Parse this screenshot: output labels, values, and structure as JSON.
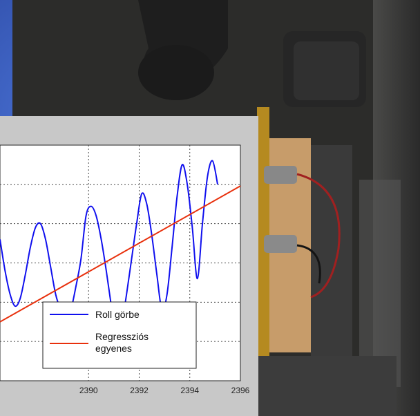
{
  "chart_data": {
    "type": "line",
    "title": "",
    "xlabel": "",
    "ylabel": "",
    "xlim": [
      2386.5,
      2396
    ],
    "ylim": [
      -1.5,
      1.5
    ],
    "x_ticks": [
      2390,
      2392,
      2394,
      2396
    ],
    "grid": true,
    "legend_placement": "bottom-right",
    "series": [
      {
        "name": "Roll görbe",
        "color": "#1010ee",
        "x": [
          2386.5,
          2386.7,
          2386.9,
          2387.1,
          2387.3,
          2387.5,
          2387.7,
          2387.9,
          2388.1,
          2388.3,
          2388.5,
          2388.7,
          2388.9,
          2389.1,
          2389.3,
          2389.5,
          2389.7,
          2389.9,
          2390.1,
          2390.3,
          2390.5,
          2390.7,
          2390.9,
          2391.1,
          2391.3,
          2391.5,
          2391.7,
          2391.9,
          2392.1,
          2392.3,
          2392.5,
          2392.7,
          2392.9,
          2393.1,
          2393.3,
          2393.5,
          2393.7,
          2393.9,
          2394.1,
          2394.3,
          2394.5,
          2394.7,
          2394.9,
          2395.1
        ],
        "y": [
          0.3,
          -0.1,
          -0.4,
          -0.55,
          -0.45,
          -0.15,
          0.2,
          0.45,
          0.5,
          0.3,
          -0.05,
          -0.4,
          -0.6,
          -0.75,
          -0.6,
          -0.3,
          0.05,
          0.6,
          0.72,
          0.6,
          0.3,
          -0.1,
          -0.55,
          -0.95,
          -0.8,
          -0.4,
          0.05,
          0.5,
          0.88,
          0.75,
          0.35,
          -0.15,
          -0.6,
          -0.4,
          0.2,
          0.85,
          1.25,
          1.0,
          0.45,
          -0.2,
          0.5,
          1.1,
          1.3,
          1.0
        ]
      },
      {
        "name": "Regressziós egyenes",
        "color": "#e8300c",
        "x": [
          2386.5,
          2396
        ],
        "y": [
          -0.75,
          0.98
        ]
      }
    ]
  }
}
